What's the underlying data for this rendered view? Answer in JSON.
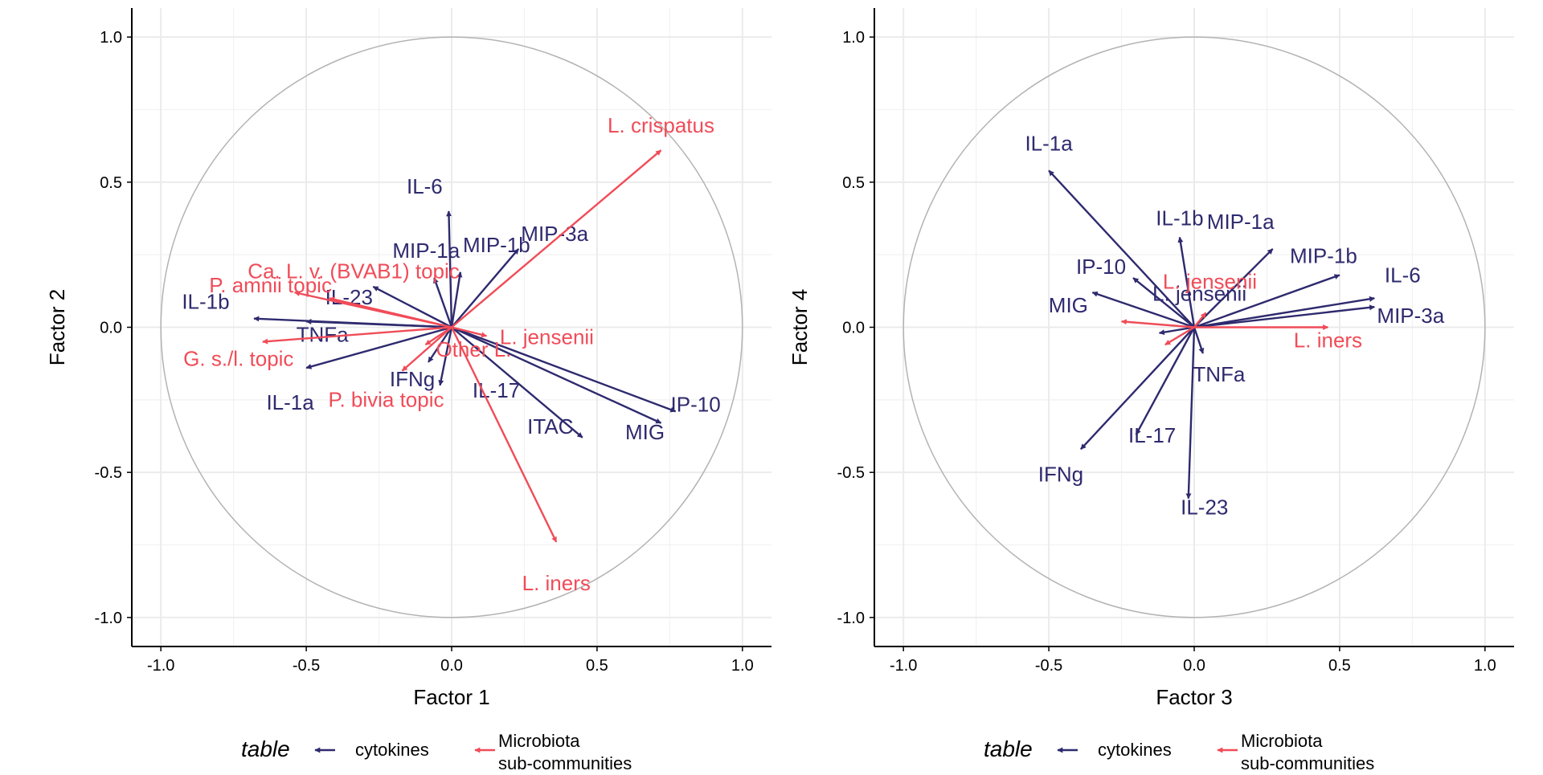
{
  "chart_data": [
    {
      "type": "scatter",
      "subtype": "correlation-circle-biplot",
      "title": "",
      "xlabel": "Factor 1",
      "ylabel": "Factor 2",
      "xlim": [
        -1.1,
        1.1
      ],
      "ylim": [
        -1.1,
        1.1
      ],
      "xticks": [
        "-1.0",
        "-0.5",
        "0.0",
        "0.5",
        "1.0"
      ],
      "yticks": [
        "-1.0",
        "-0.5",
        "0.0",
        "0.5",
        "1.0"
      ],
      "grid": true,
      "unit_circle": true,
      "series": [
        {
          "name": "cytokines",
          "color": "#2e2a6e",
          "points": [
            {
              "label": "IL-6",
              "x": -0.01,
              "y": 0.4
            },
            {
              "label": "MIP-3a",
              "x": 0.23,
              "y": 0.27
            },
            {
              "label": "MIP-1a",
              "x": -0.06,
              "y": 0.17
            },
            {
              "label": "MIP-1b",
              "x": 0.03,
              "y": 0.19
            },
            {
              "label": "IL-23",
              "x": -0.27,
              "y": 0.14
            },
            {
              "label": "IL-1b",
              "x": -0.68,
              "y": 0.03
            },
            {
              "label": "TNFa",
              "x": -0.5,
              "y": 0.02
            },
            {
              "label": "IFNg",
              "x": -0.08,
              "y": -0.12
            },
            {
              "label": "IL-1a",
              "x": -0.5,
              "y": -0.14
            },
            {
              "label": "IL-17",
              "x": -0.04,
              "y": -0.2
            },
            {
              "label": "ITAC",
              "x": 0.45,
              "y": -0.38
            },
            {
              "label": "IP-10",
              "x": 0.77,
              "y": -0.29
            },
            {
              "label": "MIG",
              "x": 0.72,
              "y": -0.33
            }
          ]
        },
        {
          "name": "Microbiota sub-communities",
          "color": "#f04c58",
          "points": [
            {
              "label": "L. crispatus",
              "x": 0.72,
              "y": 0.61
            },
            {
              "label": "P. amnii topic",
              "x": -0.54,
              "y": 0.12
            },
            {
              "label": "Ca. L. v. (BVAB1) topic",
              "x": -0.42,
              "y": 0.1
            },
            {
              "label": "G. s./l. topic",
              "x": -0.65,
              "y": -0.05
            },
            {
              "label": "L. jensenii",
              "x": 0.12,
              "y": -0.03
            },
            {
              "label": "Other L.",
              "x": -0.09,
              "y": -0.06
            },
            {
              "label": "P. bivia topic",
              "x": -0.17,
              "y": -0.15
            },
            {
              "label": "L. iners",
              "x": 0.36,
              "y": -0.74
            }
          ]
        }
      ]
    },
    {
      "type": "scatter",
      "subtype": "correlation-circle-biplot",
      "title": "",
      "xlabel": "Factor 3",
      "ylabel": "Factor 4",
      "xlim": [
        -1.1,
        1.1
      ],
      "ylim": [
        -1.1,
        1.1
      ],
      "xticks": [
        "-1.0",
        "-0.5",
        "0.0",
        "0.5",
        "1.0"
      ],
      "yticks": [
        "-1.0",
        "-0.5",
        "0.0",
        "0.5",
        "1.0"
      ],
      "grid": true,
      "unit_circle": true,
      "series": [
        {
          "name": "cytokines",
          "color": "#2e2a6e",
          "points": [
            {
              "label": "IL-1a",
              "x": -0.5,
              "y": 0.54
            },
            {
              "label": "IL-1b",
              "x": -0.05,
              "y": 0.31
            },
            {
              "label": "MIP-1a",
              "x": 0.27,
              "y": 0.27
            },
            {
              "label": "IP-10",
              "x": -0.21,
              "y": 0.17
            },
            {
              "label": "MIP-1b",
              "x": 0.5,
              "y": 0.18
            },
            {
              "label": "IL-6",
              "x": 0.62,
              "y": 0.1
            },
            {
              "label": "MIP-3a",
              "x": 0.62,
              "y": 0.07
            },
            {
              "label": "MIG",
              "x": -0.35,
              "y": 0.12
            },
            {
              "label": "TNFa",
              "x": 0.03,
              "y": -0.09
            },
            {
              "label": "IL-17",
              "x": -0.2,
              "y": -0.37
            },
            {
              "label": "IFNg",
              "x": -0.39,
              "y": -0.42
            },
            {
              "label": "IL-23",
              "x": -0.02,
              "y": -0.59
            },
            {
              "label": "L. jensenii",
              "x": -0.12,
              "y": -0.02
            }
          ]
        },
        {
          "name": "Microbiota sub-communities",
          "color": "#f04c58",
          "points": [
            {
              "label": "L. jensenii",
              "x": 0.04,
              "y": 0.05
            },
            {
              "label": "L. iners",
              "x": 0.46,
              "y": 0.0
            },
            {
              "label": "",
              "x": -0.25,
              "y": 0.02
            },
            {
              "label": "",
              "x": -0.1,
              "y": -0.06
            }
          ]
        }
      ]
    }
  ],
  "legends": [
    {
      "title": "table",
      "items": [
        {
          "label": "cytokines",
          "color": "#2e2a6e"
        },
        {
          "label_line1": "Microbiota",
          "label_line2": "sub-communities",
          "color": "#f04c58"
        }
      ]
    },
    {
      "title": "table",
      "items": [
        {
          "label": "cytokines",
          "color": "#2e2a6e"
        },
        {
          "label_line1": "Microbiota",
          "label_line2": "sub-communities",
          "color": "#f04c58"
        }
      ]
    }
  ],
  "colors": {
    "cytokines": "#2e2a6e",
    "microbiota": "#f04c58",
    "grid": "#ebebeb",
    "circle": "#b3b3b3",
    "axis": "#000000"
  }
}
